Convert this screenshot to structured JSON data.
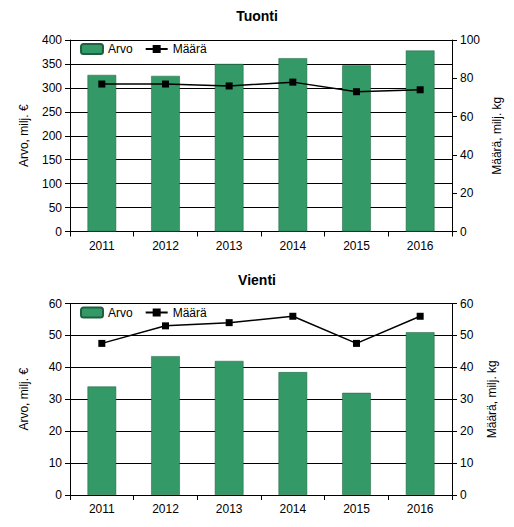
{
  "chart_data": [
    {
      "type": "bar",
      "title": "Tuonti",
      "categories": [
        "2011",
        "2012",
        "2013",
        "2014",
        "2015",
        "2016"
      ],
      "ylabel": "Arvo, milj. €",
      "y2label": "Määrä, milj. kg",
      "ylim": [
        0,
        400
      ],
      "yticks": [
        0,
        50,
        100,
        150,
        200,
        250,
        300,
        350,
        400
      ],
      "y2lim": [
        0,
        100
      ],
      "y2ticks": [
        0,
        20,
        40,
        60,
        80,
        100
      ],
      "grid": true,
      "legend": "top-left",
      "series": [
        {
          "name": "Arvo",
          "type": "bar",
          "color": "#339966",
          "values": [
            327,
            325,
            350,
            362,
            347,
            378
          ]
        },
        {
          "name": "Määrä",
          "type": "line",
          "axis": "y2",
          "color": "#000000",
          "marker": "square",
          "line_style": "solid",
          "values": [
            77,
            77,
            76,
            78,
            73,
            74
          ]
        }
      ]
    },
    {
      "type": "bar",
      "title": "Vienti",
      "categories": [
        "2011",
        "2012",
        "2013",
        "2014",
        "2015",
        "2016"
      ],
      "ylabel": "Arvo, milj. €",
      "y2label": "Määrä, milj. kg",
      "ylim": [
        0,
        60
      ],
      "yticks": [
        0,
        10,
        20,
        30,
        40,
        50,
        60
      ],
      "y2lim": [
        0,
        60
      ],
      "y2ticks": [
        0,
        10,
        20,
        30,
        40,
        50,
        60
      ],
      "grid": true,
      "legend": "top-left",
      "series": [
        {
          "name": "Arvo",
          "type": "bar",
          "color": "#339966",
          "values": [
            34,
            43.5,
            42,
            38.5,
            32,
            51
          ]
        },
        {
          "name": "Määrä",
          "type": "line",
          "axis": "y2",
          "color": "#000000",
          "marker": "square",
          "line_style": "solid",
          "values": [
            47.5,
            53,
            54,
            56,
            47.5,
            56
          ]
        }
      ]
    }
  ]
}
